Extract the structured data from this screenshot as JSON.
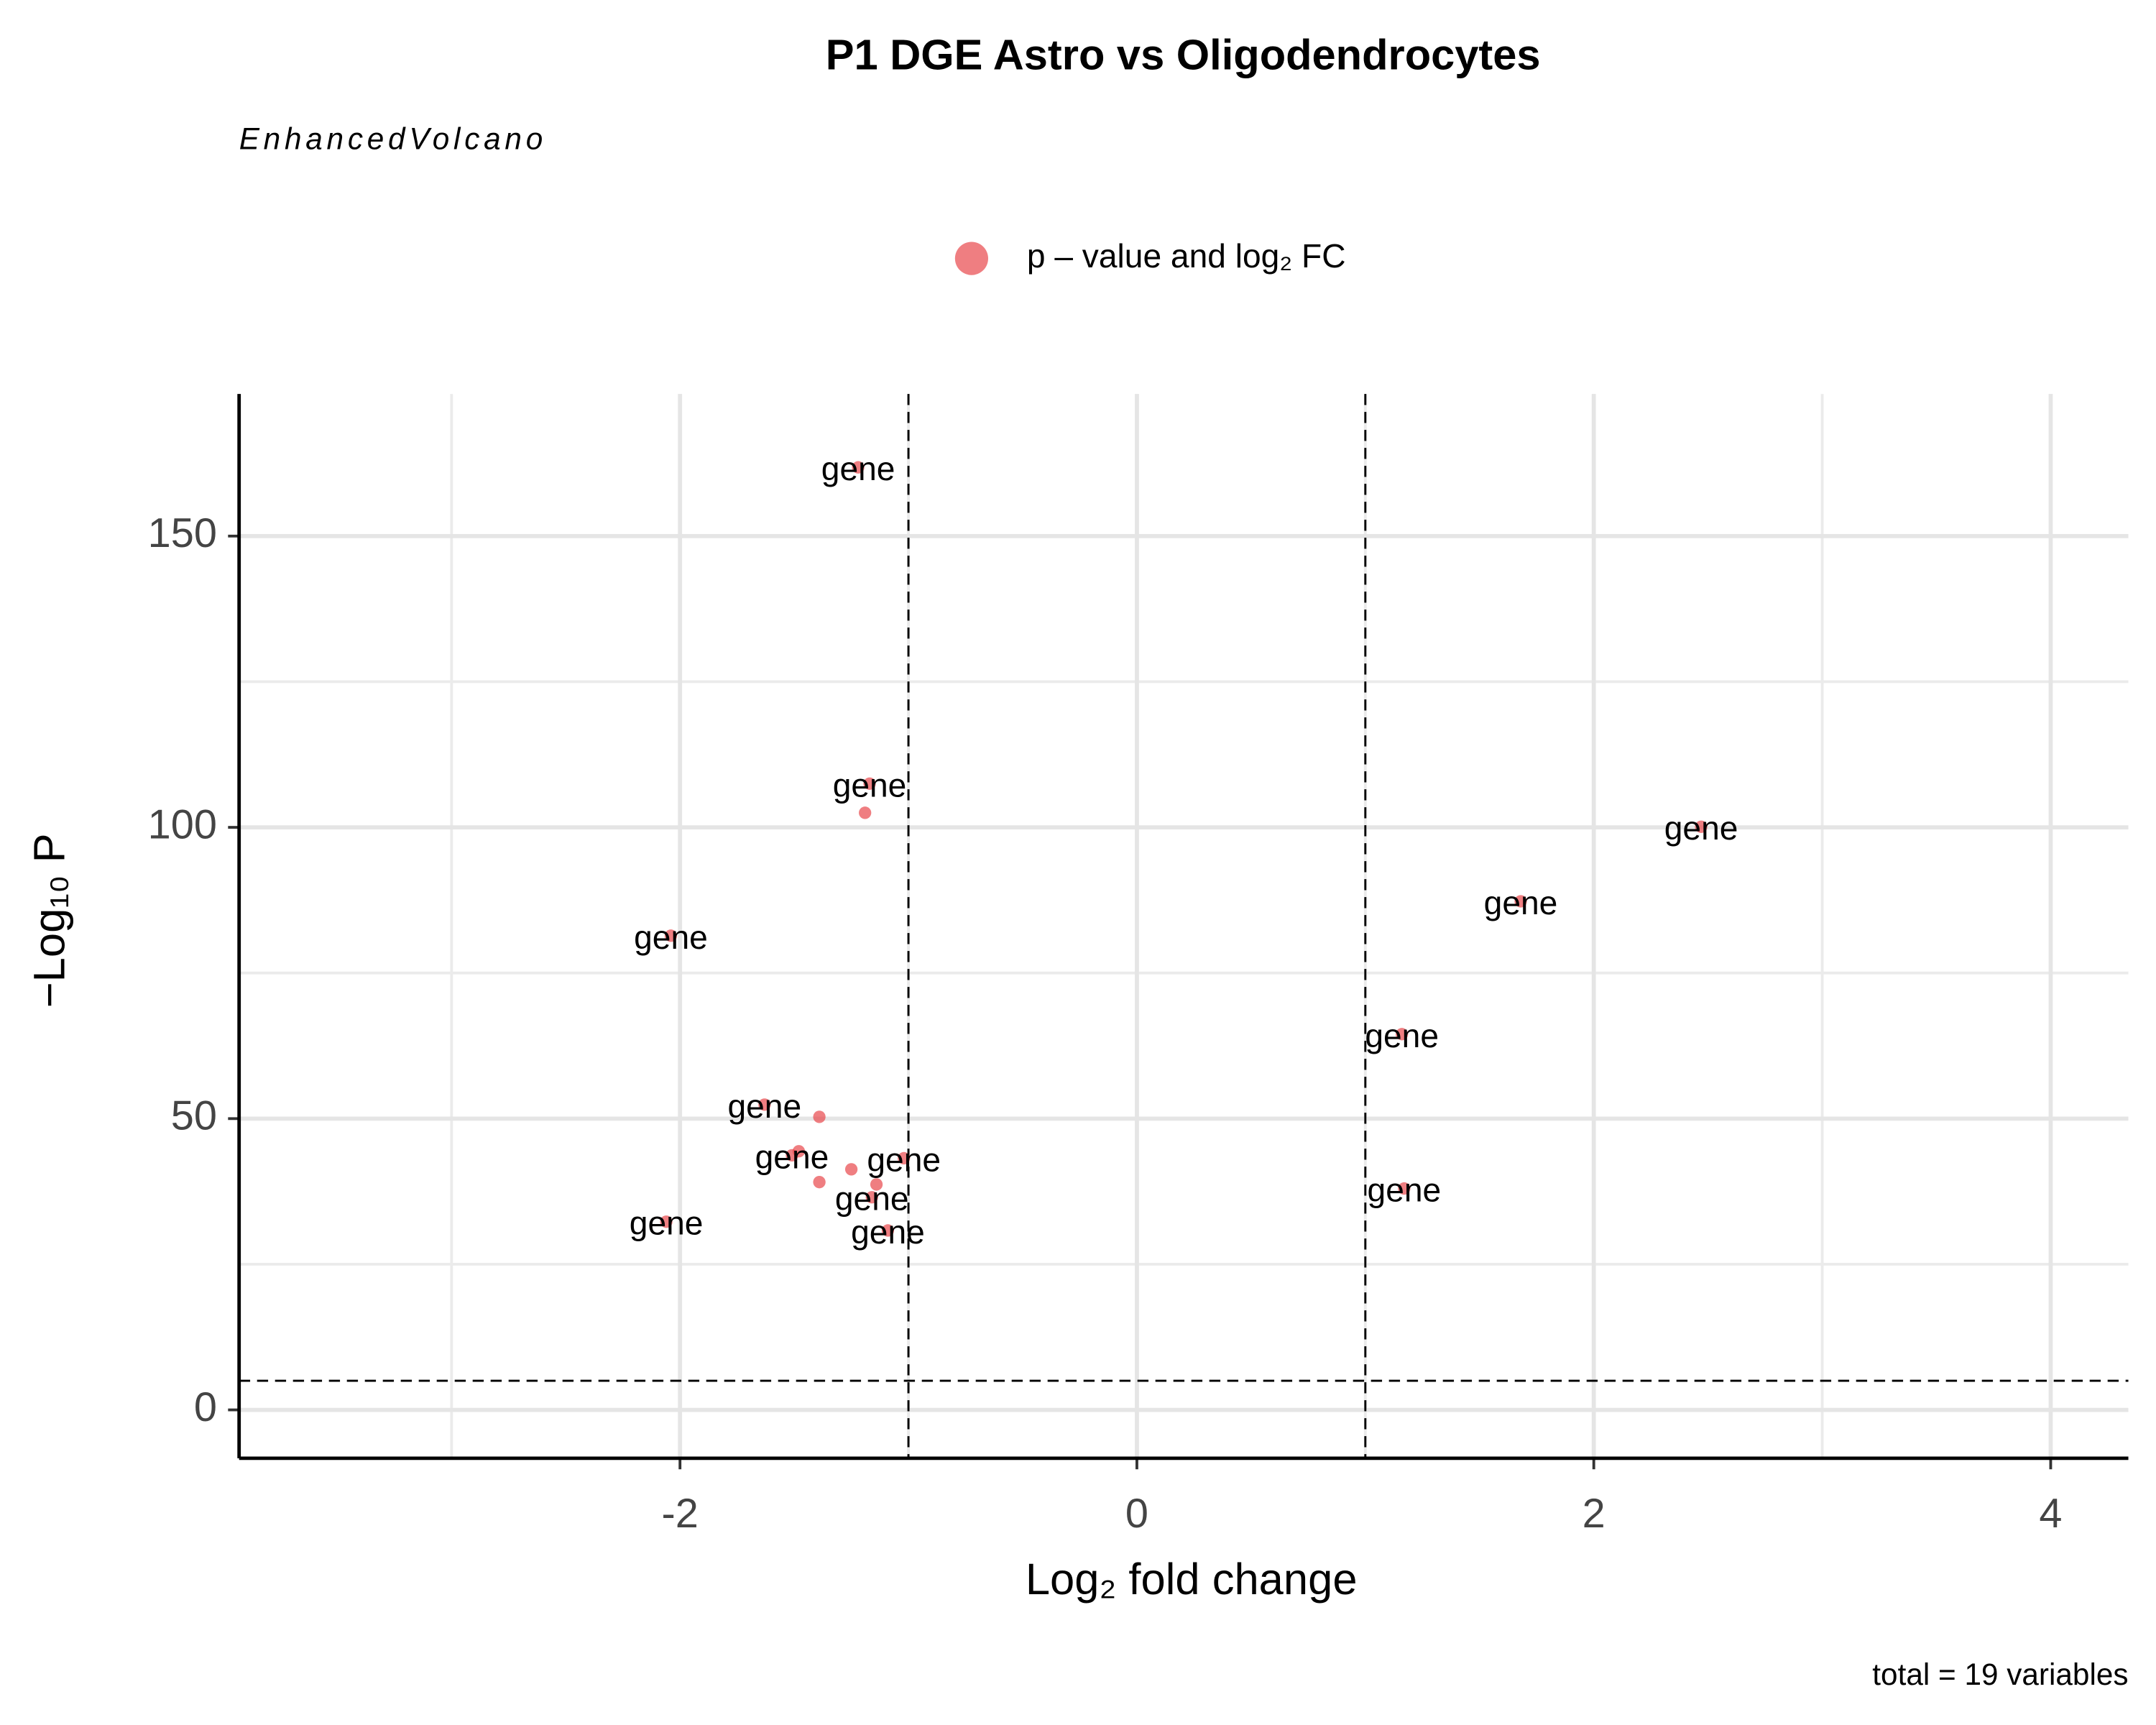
{
  "chart_data": {
    "type": "scatter",
    "title": "P1 DGE Astro vs Oligodendrocytes",
    "subtitle": "EnhancedVolcano",
    "caption": "total = 19 variables",
    "x_label": "Log₂ fold change",
    "y_label": "−Log₁₀ P",
    "legend_position": "top",
    "grid": true,
    "xlim": [
      -3.93,
      4.34
    ],
    "ylim": [
      -8.3,
      174.4
    ],
    "xticks": [
      -2,
      0,
      2,
      4
    ],
    "yticks": [
      0,
      50,
      100,
      150
    ],
    "x_minor_ticks": [
      -3,
      -1,
      1,
      3
    ],
    "y_minor_ticks": [
      25,
      75,
      125
    ],
    "cutoff_x": [
      -1,
      1
    ],
    "cutoff_y": 5,
    "series": [
      {
        "name": "p – value and log₂ FC",
        "color": "#e8474c",
        "x": [
          -1.22,
          -1.17,
          -1.19,
          -2.04,
          2.47,
          1.68,
          1.16,
          1.17,
          -1.63,
          -1.39,
          -1.48,
          -1.51,
          -1.02,
          -1.25,
          -1.39,
          -1.14,
          -1.16,
          -2.06,
          -1.09
        ],
        "values": [
          161.8,
          107.5,
          102.5,
          81.4,
          100.1,
          87.3,
          64.5,
          38.0,
          52.4,
          50.3,
          44.4,
          43.7,
          43.2,
          41.3,
          39.1,
          38.7,
          36.5,
          32.3,
          30.8
        ],
        "labels": [
          "gene",
          "gene",
          null,
          "gene",
          "gene",
          "gene",
          "gene",
          "gene",
          "gene",
          null,
          null,
          "gene",
          "gene",
          null,
          null,
          null,
          "gene",
          "gene",
          "gene"
        ]
      }
    ]
  }
}
